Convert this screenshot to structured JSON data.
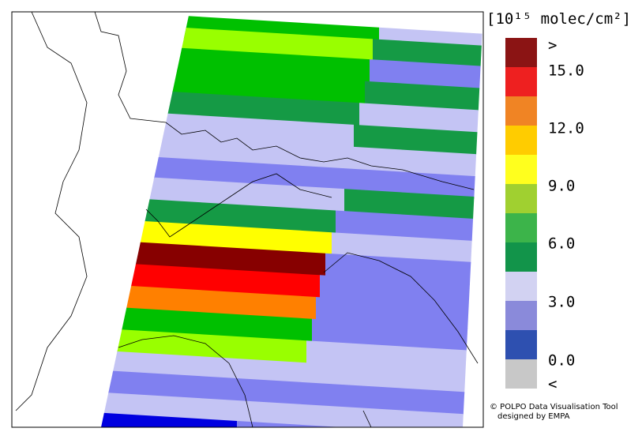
{
  "colorbar": {
    "unit_label": "[10¹⁵ molec/cm²]",
    "labels": [
      ">",
      "15.0",
      "12.0",
      "9.0",
      "6.0",
      "3.0",
      "0.0",
      "<"
    ],
    "colors": [
      "#8b1414",
      "#ee2020",
      "#f08424",
      "#ffcc00",
      "#ffff1e",
      "#a0d030",
      "#3cb44a",
      "#12944a",
      "#d2d2f2",
      "#8a8ada",
      "#2e50b0",
      "#c8c8c8"
    ]
  },
  "credit": [
    "© POLPO Data Visualisation Tool",
    "designed by EMPA"
  ]
}
